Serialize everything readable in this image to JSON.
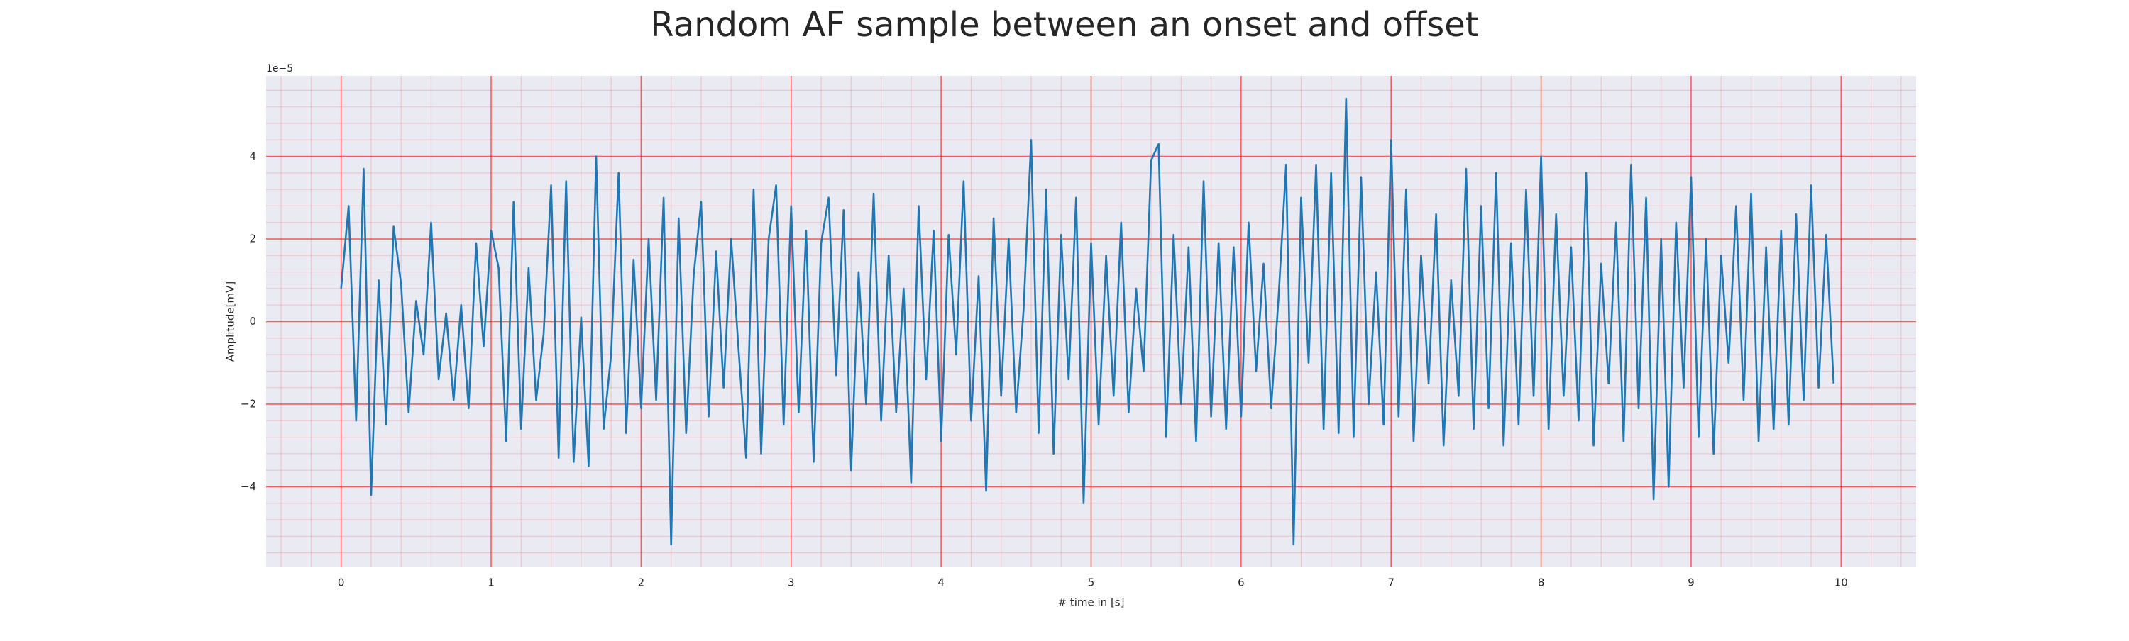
{
  "chart_data": {
    "type": "line",
    "title": "Random AF sample between an onset and offset",
    "xlabel": "# time in [s]",
    "ylabel": "Amplitude[mV]",
    "offset_text": "1e−5",
    "color": "#1f77b4",
    "grid": true,
    "grid_color": "#ff0000",
    "background": "#eaeaf2",
    "xlim": [
      -0.5,
      10.5
    ],
    "ylim": [
      -5.95,
      5.95
    ],
    "xticks": [
      0,
      1,
      2,
      3,
      4,
      5,
      6,
      7,
      8,
      9,
      10
    ],
    "yticks": [
      {
        "value": -4,
        "label": "−4"
      },
      {
        "value": -2,
        "label": "−2"
      },
      0,
      2,
      4
    ],
    "xminorticks": [
      -0.4,
      -0.2,
      0.2,
      0.4,
      0.6,
      0.8,
      1.2,
      1.4,
      1.6,
      1.8,
      2.2,
      2.4,
      2.6,
      2.8,
      3.2,
      3.4,
      3.6,
      3.8,
      4.2,
      4.4,
      4.6,
      4.8,
      5.2,
      5.4,
      5.6,
      5.8,
      6.2,
      6.4,
      6.6,
      6.8,
      7.2,
      7.4,
      7.6,
      7.8,
      8.2,
      8.4,
      8.6,
      8.8,
      9.2,
      9.4,
      9.6,
      9.8,
      10.2,
      10.4
    ],
    "yminorticks": [
      -5.6,
      -5.2,
      -4.8,
      -4.4,
      -3.6,
      -3.2,
      -2.8,
      -2.4,
      -1.6,
      -1.2,
      -0.8,
      -0.4,
      0.4,
      0.8,
      1.2,
      1.6,
      2.4,
      2.8,
      3.2,
      3.6,
      4.4,
      4.8,
      5.2,
      5.6
    ],
    "x": [
      0,
      0.05,
      0.1,
      0.15,
      0.2,
      0.25,
      0.3,
      0.35,
      0.4,
      0.45,
      0.5,
      0.55,
      0.6,
      0.65,
      0.7,
      0.75,
      0.8,
      0.85,
      0.9,
      0.95,
      1,
      1.05,
      1.1,
      1.15,
      1.2,
      1.25,
      1.3,
      1.35,
      1.4,
      1.45,
      1.5,
      1.55,
      1.6,
      1.65,
      1.7,
      1.75,
      1.8,
      1.85,
      1.9,
      1.95,
      2,
      2.05,
      2.1,
      2.15,
      2.2,
      2.25,
      2.3,
      2.35,
      2.4,
      2.45,
      2.5,
      2.55,
      2.6,
      2.65,
      2.7,
      2.75,
      2.8,
      2.85,
      2.9,
      2.95,
      3,
      3.05,
      3.1,
      3.15,
      3.2,
      3.25,
      3.3,
      3.35,
      3.4,
      3.45,
      3.5,
      3.55,
      3.6,
      3.65,
      3.7,
      3.75,
      3.8,
      3.85,
      3.9,
      3.95,
      4,
      4.05,
      4.1,
      4.15,
      4.2,
      4.25,
      4.3,
      4.35,
      4.4,
      4.45,
      4.5,
      4.55,
      4.6,
      4.65,
      4.7,
      4.75,
      4.8,
      4.85,
      4.9,
      4.95,
      5,
      5.05,
      5.1,
      5.15,
      5.2,
      5.25,
      5.3,
      5.35,
      5.4,
      5.45,
      5.5,
      5.55,
      5.6,
      5.65,
      5.7,
      5.75,
      5.8,
      5.85,
      5.9,
      5.95,
      6,
      6.05,
      6.1,
      6.15,
      6.2,
      6.25,
      6.3,
      6.35,
      6.4,
      6.45,
      6.5,
      6.55,
      6.6,
      6.65,
      6.7,
      6.75,
      6.8,
      6.85,
      6.9,
      6.95,
      7,
      7.05,
      7.1,
      7.15,
      7.2,
      7.25,
      7.3,
      7.35,
      7.4,
      7.45,
      7.5,
      7.55,
      7.6,
      7.65,
      7.7,
      7.75,
      7.8,
      7.85,
      7.9,
      7.95,
      8,
      8.05,
      8.1,
      8.15,
      8.2,
      8.25,
      8.3,
      8.35,
      8.4,
      8.45,
      8.5,
      8.55,
      8.6,
      8.65,
      8.7,
      8.75,
      8.8,
      8.85,
      8.9,
      8.95,
      9,
      9.05,
      9.1,
      9.15,
      9.2,
      9.25,
      9.3,
      9.35,
      9.4,
      9.45,
      9.5,
      9.55,
      9.6,
      9.65,
      9.7,
      9.75,
      9.8,
      9.85,
      9.9,
      9.95
    ],
    "values": [
      0.8,
      2.8,
      -2.4,
      3.7,
      -4.2,
      1.0,
      -2.5,
      2.3,
      0.9,
      -2.2,
      0.5,
      -0.8,
      2.4,
      -1.4,
      0.2,
      -1.9,
      0.4,
      -2.1,
      1.9,
      -0.6,
      2.2,
      1.3,
      -2.9,
      2.9,
      -2.6,
      1.3,
      -1.9,
      -0.3,
      3.3,
      -3.3,
      3.4,
      -3.4,
      0.1,
      -3.5,
      4.0,
      -2.6,
      -0.8,
      3.6,
      -2.7,
      1.5,
      -2.1,
      2.0,
      -1.9,
      3.0,
      -5.4,
      2.5,
      -2.7,
      1.1,
      2.9,
      -2.3,
      1.7,
      -1.6,
      2.0,
      -0.7,
      -3.3,
      3.2,
      -3.2,
      2.0,
      3.3,
      -2.5,
      2.8,
      -2.2,
      2.2,
      -3.4,
      1.9,
      3.0,
      -1.3,
      2.7,
      -3.6,
      1.2,
      -2.0,
      3.1,
      -2.4,
      1.6,
      -2.2,
      0.8,
      -3.9,
      2.8,
      -1.4,
      2.2,
      -2.9,
      2.1,
      -0.8,
      3.4,
      -2.4,
      1.1,
      -4.1,
      2.5,
      -1.8,
      2.0,
      -2.2,
      0.3,
      4.4,
      -2.7,
      3.2,
      -3.2,
      2.1,
      -1.4,
      3.0,
      -4.4,
      1.9,
      -2.5,
      1.6,
      -1.8,
      2.4,
      -2.2,
      0.8,
      -1.2,
      3.9,
      4.3,
      -2.8,
      2.1,
      -2.0,
      1.8,
      -2.9,
      3.4,
      -2.3,
      1.9,
      -2.6,
      1.8,
      -2.3,
      2.4,
      -1.2,
      1.4,
      -2.1,
      0.6,
      3.8,
      -5.4,
      3.0,
      -1.0,
      3.8,
      -2.6,
      3.6,
      -2.7,
      5.4,
      -2.8,
      3.5,
      -2.0,
      1.2,
      -2.5,
      4.4,
      -2.3,
      3.2,
      -2.9,
      1.6,
      -1.5,
      2.6,
      -3.0,
      1.0,
      -1.8,
      3.7,
      -2.6,
      2.8,
      -2.1,
      3.6,
      -3.0,
      1.9,
      -2.5,
      3.2,
      -1.8,
      4.0,
      -2.6,
      2.6,
      -1.8,
      1.8,
      -2.4,
      3.6,
      -3.0,
      1.4,
      -1.5,
      2.4,
      -2.9,
      3.8,
      -2.1,
      3.0,
      -4.3,
      2.0,
      -4.0,
      2.4,
      -1.6,
      3.5,
      -2.8,
      2.0,
      -3.2,
      1.6,
      -1.0,
      2.8,
      -1.9,
      3.1,
      -2.9,
      1.8,
      -2.6,
      2.2,
      -2.5,
      2.6,
      -1.9,
      3.3,
      -1.6,
      2.1,
      -1.5
    ]
  }
}
